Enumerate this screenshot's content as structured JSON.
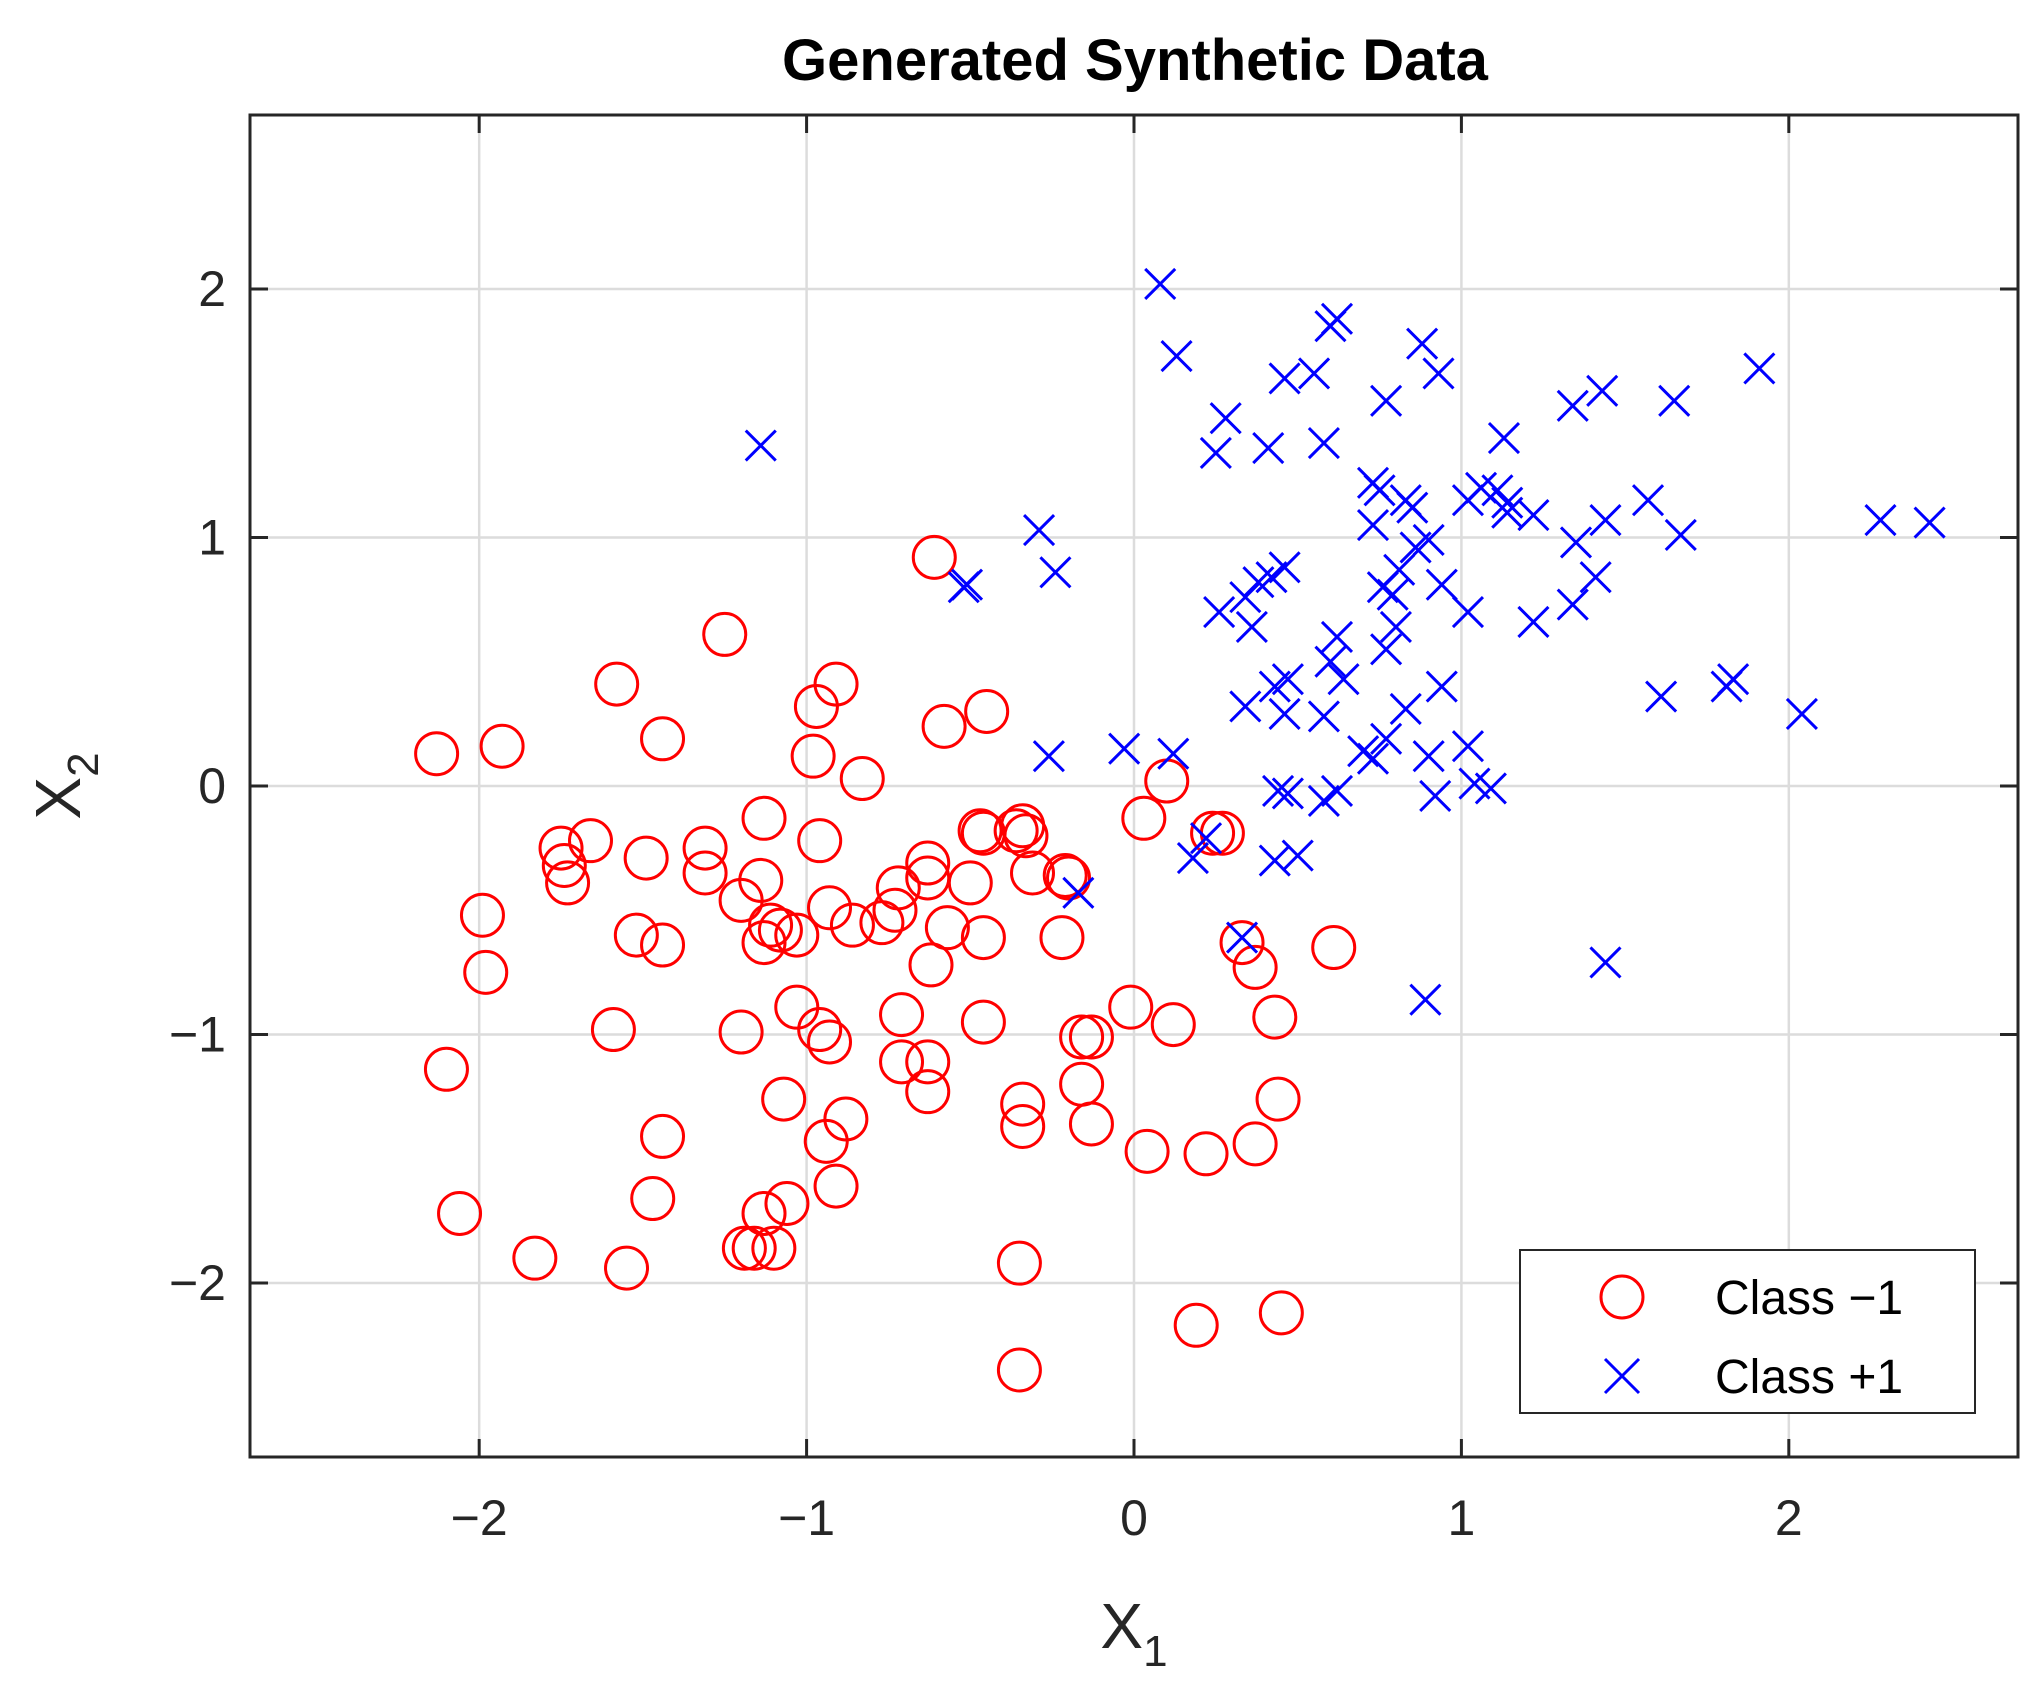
{
  "colors": {
    "class_neg": "#ff0000",
    "class_pos": "#0000ff",
    "grid": "#dcdcdc",
    "axes": "#262626"
  },
  "chart_data": {
    "type": "scatter",
    "title": "Generated Synthetic Data",
    "xlabel": {
      "base": "X",
      "sub": "1"
    },
    "ylabel": {
      "base": "X",
      "sub": "2"
    },
    "xlim": [
      -2.7,
      2.7
    ],
    "ylim": [
      -2.7,
      2.7
    ],
    "xticks": [
      -2,
      -1,
      0,
      1,
      2
    ],
    "yticks": [
      -2,
      -1,
      0,
      1,
      2
    ],
    "xtick_labels": [
      "−2",
      "−1",
      "0",
      "1",
      "2"
    ],
    "ytick_labels": [
      "−2",
      "−1",
      "0",
      "1",
      "2"
    ],
    "grid": true,
    "legend_position": "bottom-right",
    "series": [
      {
        "name": "Class −1",
        "marker": "circle",
        "color": "#ff0000",
        "points": [
          [
            -2.13,
            0.13
          ],
          [
            -1.93,
            0.16
          ],
          [
            -1.25,
            0.61
          ],
          [
            -1.58,
            0.41
          ],
          [
            -1.44,
            0.19
          ],
          [
            -0.97,
            0.32
          ],
          [
            -0.91,
            0.41
          ],
          [
            -0.98,
            0.12
          ],
          [
            -0.83,
            0.03
          ],
          [
            -0.58,
            0.24
          ],
          [
            -0.45,
            0.3
          ],
          [
            -0.61,
            0.92
          ],
          [
            -1.75,
            -0.25
          ],
          [
            -1.66,
            -0.22
          ],
          [
            -1.74,
            -0.32
          ],
          [
            -1.73,
            -0.39
          ],
          [
            -1.49,
            -0.29
          ],
          [
            -1.31,
            -0.25
          ],
          [
            -1.31,
            -0.35
          ],
          [
            -1.13,
            -0.13
          ],
          [
            -0.96,
            -0.22
          ],
          [
            -1.2,
            -0.46
          ],
          [
            -1.14,
            -0.38
          ],
          [
            -1.99,
            -0.52
          ],
          [
            -1.98,
            -0.75
          ],
          [
            -1.52,
            -0.6
          ],
          [
            -1.44,
            -0.64
          ],
          [
            -1.11,
            -0.56
          ],
          [
            -1.13,
            -0.63
          ],
          [
            -1.08,
            -0.58
          ],
          [
            -1.03,
            -0.6
          ],
          [
            -0.93,
            -0.49
          ],
          [
            -0.86,
            -0.56
          ],
          [
            -0.77,
            -0.55
          ],
          [
            -0.73,
            -0.5
          ],
          [
            -0.72,
            -0.41
          ],
          [
            -0.63,
            -0.31
          ],
          [
            -0.63,
            -0.37
          ],
          [
            -0.5,
            -0.39
          ],
          [
            -0.47,
            -0.18
          ],
          [
            -0.46,
            -0.19
          ],
          [
            -0.34,
            -0.16
          ],
          [
            -0.36,
            -0.18
          ],
          [
            -0.33,
            -0.2
          ],
          [
            -0.31,
            -0.35
          ],
          [
            -0.21,
            -0.36
          ],
          [
            -0.2,
            -0.37
          ],
          [
            -0.57,
            -0.57
          ],
          [
            -0.46,
            -0.61
          ],
          [
            -0.22,
            -0.61
          ],
          [
            -0.62,
            -0.72
          ],
          [
            -1.59,
            -0.98
          ],
          [
            -1.2,
            -0.99
          ],
          [
            -1.03,
            -0.89
          ],
          [
            -0.96,
            -0.98
          ],
          [
            -0.93,
            -1.03
          ],
          [
            -0.71,
            -0.92
          ],
          [
            -0.46,
            -0.95
          ],
          [
            -0.71,
            -1.11
          ],
          [
            -0.63,
            -1.11
          ],
          [
            -0.63,
            -1.23
          ],
          [
            -0.16,
            -1.01
          ],
          [
            -0.13,
            -1.01
          ],
          [
            -0.16,
            -1.2
          ],
          [
            -2.1,
            -1.14
          ],
          [
            -1.44,
            -1.41
          ],
          [
            -1.07,
            -1.26
          ],
          [
            -0.88,
            -1.34
          ],
          [
            -0.94,
            -1.43
          ],
          [
            -0.34,
            -1.28
          ],
          [
            -0.34,
            -1.37
          ],
          [
            -0.13,
            -1.36
          ],
          [
            -1.47,
            -1.66
          ],
          [
            -0.91,
            -1.61
          ],
          [
            -1.06,
            -1.68
          ],
          [
            -1.13,
            -1.72
          ],
          [
            -2.06,
            -1.72
          ],
          [
            -1.83,
            -1.9
          ],
          [
            -1.55,
            -1.94
          ],
          [
            -1.19,
            -1.86
          ],
          [
            -1.16,
            -1.86
          ],
          [
            -1.1,
            -1.86
          ],
          [
            -0.35,
            -1.92
          ],
          [
            -0.35,
            -2.35
          ],
          [
            0.19,
            -2.17
          ],
          [
            0.45,
            -2.12
          ],
          [
            0.1,
            0.02
          ],
          [
            0.03,
            -0.13
          ],
          [
            0.24,
            -0.19
          ],
          [
            0.27,
            -0.19
          ],
          [
            0.33,
            -0.63
          ],
          [
            0.37,
            -0.73
          ],
          [
            0.61,
            -0.65
          ],
          [
            0.43,
            -0.93
          ],
          [
            -0.01,
            -0.89
          ],
          [
            0.12,
            -0.96
          ],
          [
            0.04,
            -1.47
          ],
          [
            0.22,
            -1.48
          ],
          [
            0.37,
            -1.44
          ],
          [
            0.44,
            -1.26
          ]
        ]
      },
      {
        "name": "Class +1",
        "marker": "x",
        "color": "#0000ff",
        "points": [
          [
            0.08,
            2.02
          ],
          [
            0.13,
            1.73
          ],
          [
            0.6,
            1.85
          ],
          [
            0.62,
            1.88
          ],
          [
            0.88,
            1.78
          ],
          [
            0.93,
            1.66
          ],
          [
            0.55,
            1.66
          ],
          [
            0.46,
            1.64
          ],
          [
            1.91,
            1.68
          ],
          [
            1.43,
            1.59
          ],
          [
            1.34,
            1.53
          ],
          [
            1.65,
            1.55
          ],
          [
            0.77,
            1.55
          ],
          [
            0.28,
            1.48
          ],
          [
            0.25,
            1.34
          ],
          [
            0.41,
            1.36
          ],
          [
            0.58,
            1.38
          ],
          [
            1.13,
            1.4
          ],
          [
            -1.14,
            1.37
          ],
          [
            0.73,
            1.22
          ],
          [
            0.75,
            1.19
          ],
          [
            0.83,
            1.15
          ],
          [
            0.85,
            1.12
          ],
          [
            1.02,
            1.15
          ],
          [
            1.06,
            1.2
          ],
          [
            1.11,
            1.19
          ],
          [
            1.14,
            1.14
          ],
          [
            1.14,
            1.1
          ],
          [
            1.22,
            1.09
          ],
          [
            1.35,
            0.98
          ],
          [
            1.44,
            1.07
          ],
          [
            1.57,
            1.15
          ],
          [
            1.67,
            1.01
          ],
          [
            2.28,
            1.07
          ],
          [
            2.43,
            1.06
          ],
          [
            -0.29,
            1.03
          ],
          [
            -0.24,
            0.86
          ],
          [
            -0.52,
            0.8
          ],
          [
            -0.51,
            0.81
          ],
          [
            0.34,
            0.76
          ],
          [
            0.38,
            0.82
          ],
          [
            0.42,
            0.84
          ],
          [
            0.46,
            0.88
          ],
          [
            0.73,
            1.05
          ],
          [
            0.81,
            0.87
          ],
          [
            0.86,
            0.96
          ],
          [
            0.9,
            0.99
          ],
          [
            0.94,
            0.81
          ],
          [
            0.76,
            0.8
          ],
          [
            0.79,
            0.77
          ],
          [
            0.26,
            0.7
          ],
          [
            0.36,
            0.64
          ],
          [
            1.02,
            0.7
          ],
          [
            1.22,
            0.66
          ],
          [
            1.34,
            0.73
          ],
          [
            1.41,
            0.84
          ],
          [
            0.6,
            0.5
          ],
          [
            0.62,
            0.6
          ],
          [
            0.64,
            0.43
          ],
          [
            0.77,
            0.55
          ],
          [
            0.8,
            0.64
          ],
          [
            0.83,
            0.31
          ],
          [
            0.94,
            0.4
          ],
          [
            0.34,
            0.32
          ],
          [
            0.43,
            0.4
          ],
          [
            0.46,
            0.29
          ],
          [
            0.47,
            0.43
          ],
          [
            1.61,
            0.36
          ],
          [
            1.81,
            0.4
          ],
          [
            1.83,
            0.43
          ],
          [
            2.04,
            0.29
          ],
          [
            -0.26,
            0.12
          ],
          [
            -0.03,
            0.15
          ],
          [
            0.12,
            0.13
          ],
          [
            0.58,
            0.28
          ],
          [
            0.7,
            0.14
          ],
          [
            0.73,
            0.11
          ],
          [
            0.77,
            0.19
          ],
          [
            0.9,
            0.12
          ],
          [
            1.02,
            0.16
          ],
          [
            1.04,
            0.01
          ],
          [
            1.09,
            -0.01
          ],
          [
            0.92,
            -0.04
          ],
          [
            0.44,
            -0.02
          ],
          [
            0.47,
            -0.03
          ],
          [
            0.58,
            -0.06
          ],
          [
            0.62,
            -0.02
          ],
          [
            0.18,
            -0.29
          ],
          [
            0.22,
            -0.21
          ],
          [
            0.43,
            -0.3
          ],
          [
            0.5,
            -0.28
          ],
          [
            -0.17,
            -0.43
          ],
          [
            0.33,
            -0.61
          ],
          [
            1.44,
            -0.71
          ],
          [
            0.89,
            -0.86
          ]
        ]
      }
    ]
  }
}
